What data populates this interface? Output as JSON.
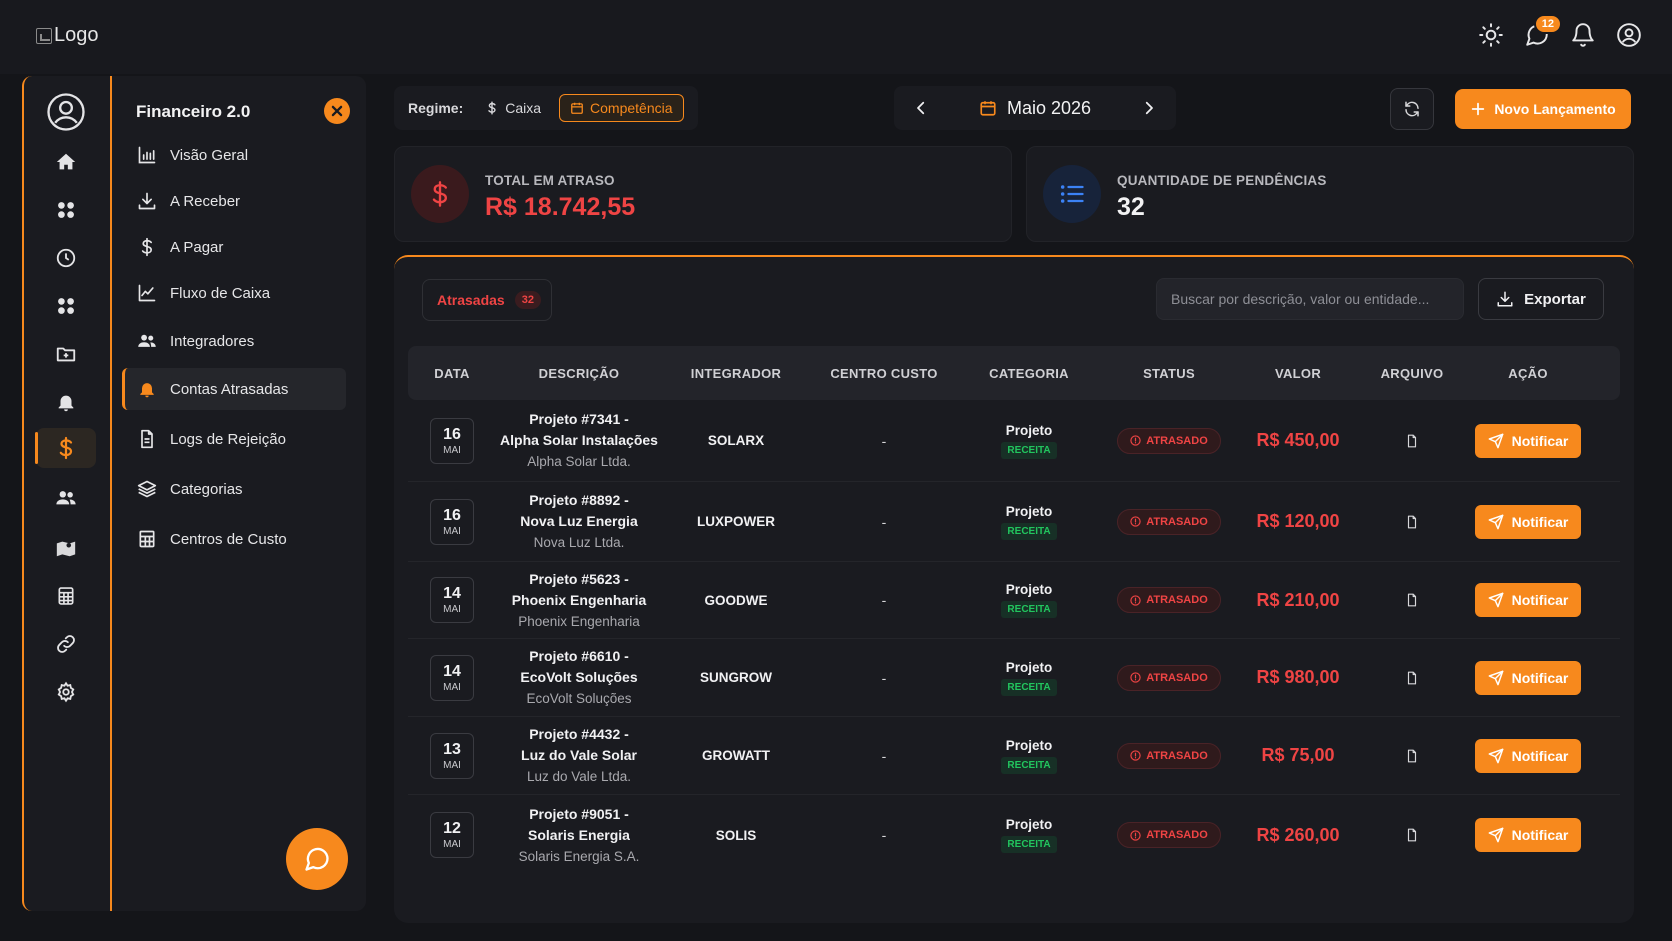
{
  "header": {
    "logo_alt": "Logo",
    "messages_badge": "12"
  },
  "panel": {
    "title": "Financeiro 2.0",
    "items": [
      {
        "label": "Visão Geral",
        "icon": "bar-chart-icon"
      },
      {
        "label": "A Receber",
        "icon": "download-icon"
      },
      {
        "label": "A Pagar",
        "icon": "dollar-icon"
      },
      {
        "label": "Fluxo de Caixa",
        "icon": "line-chart-icon"
      },
      {
        "label": "Integradores",
        "icon": "users-icon"
      },
      {
        "label": "Contas Atrasadas",
        "icon": "bell-icon"
      },
      {
        "label": "Logs de Rejeição",
        "icon": "file-text-icon"
      },
      {
        "label": "Categorias",
        "icon": "layers-icon"
      },
      {
        "label": "Centros de Custo",
        "icon": "building-icon"
      }
    ]
  },
  "toolbar": {
    "regime_label": "Regime:",
    "caixa_label": "Caixa",
    "competencia_label": "Competência",
    "period_label": "Maio 2026",
    "new_label": "Novo Lançamento"
  },
  "kpis": {
    "overdue_label": "TOTAL EM ATRASO",
    "overdue_value": "R$ 18.742,55",
    "pending_label": "QUANTIDADE DE PENDÊNCIAS",
    "pending_value": "32"
  },
  "table": {
    "tab_label": "Atrasadas",
    "tab_count": "32",
    "search_placeholder": "Buscar por descrição, valor ou entidade...",
    "export_label": "Exportar",
    "headers": [
      "DATA",
      "DESCRIÇÃO",
      "INTEGRADOR",
      "CENTRO CUSTO",
      "CATEGORIA",
      "STATUS",
      "VALOR",
      "ARQUIVO",
      "AÇÃO"
    ],
    "rows": [
      {
        "day": "16",
        "month": "MAI",
        "title1": "Projeto #7341 -",
        "title2": "Alpha Solar Instalações",
        "entity": "Alpha Solar Ltda.",
        "integrator": "SOLARX",
        "cost_center": "-",
        "category": "Projeto",
        "category_tag": "RECEITA",
        "status": "ATRASADO",
        "value": "R$ 450,00",
        "action": "Notificar"
      },
      {
        "day": "16",
        "month": "MAI",
        "title1": "Projeto #8892 -",
        "title2": "Nova Luz Energia",
        "entity": "Nova Luz Ltda.",
        "integrator": "LUXPOWER",
        "cost_center": "-",
        "category": "Projeto",
        "category_tag": "RECEITA",
        "status": "ATRASADO",
        "value": "R$ 120,00",
        "action": "Notificar"
      },
      {
        "day": "14",
        "month": "MAI",
        "title1": "Projeto #5623 -",
        "title2": "Phoenix Engenharia",
        "entity": "Phoenix Engenharia",
        "integrator": "GOODWE",
        "cost_center": "-",
        "category": "Projeto",
        "category_tag": "RECEITA",
        "status": "ATRASADO",
        "value": "R$ 210,00",
        "action": "Notificar"
      },
      {
        "day": "14",
        "month": "MAI",
        "title1": "Projeto #6610 -",
        "title2": "EcoVolt Soluções",
        "entity": "EcoVolt Soluções",
        "integrator": "SUNGROW",
        "cost_center": "-",
        "category": "Projeto",
        "category_tag": "RECEITA",
        "status": "ATRASADO",
        "value": "R$ 980,00",
        "action": "Notificar"
      },
      {
        "day": "13",
        "month": "MAI",
        "title1": "Projeto #4432 -",
        "title2": "Luz do Vale Solar",
        "entity": "Luz do Vale Ltda.",
        "integrator": "GROWATT",
        "cost_center": "-",
        "category": "Projeto",
        "category_tag": "RECEITA",
        "status": "ATRASADO",
        "value": "R$ 75,00",
        "action": "Notificar"
      },
      {
        "day": "12",
        "month": "MAI",
        "title1": "Projeto #9051 -",
        "title2": "Solaris Energia",
        "entity": "Solaris Energia S.A.",
        "integrator": "SOLIS",
        "cost_center": "-",
        "category": "Projeto",
        "category_tag": "RECEITA",
        "status": "ATRASADO",
        "value": "R$ 260,00",
        "action": "Notificar"
      }
    ]
  },
  "colors": {
    "accent": "#f7891d",
    "danger": "#ef4444",
    "success": "#22c55e",
    "info": "#3b82f6"
  }
}
